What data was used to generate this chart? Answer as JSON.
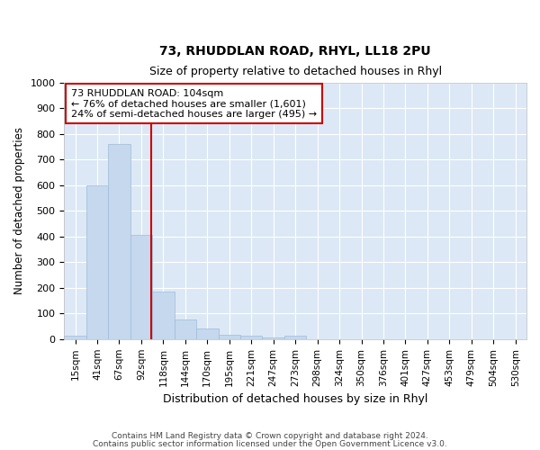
{
  "title": "73, RHUDDLAN ROAD, RHYL, LL18 2PU",
  "subtitle": "Size of property relative to detached houses in Rhyl",
  "xlabel": "Distribution of detached houses by size in Rhyl",
  "ylabel": "Number of detached properties",
  "bar_color": "#c5d8ee",
  "bar_edge_color": "#a0bcd8",
  "background_color": "#dce8f5",
  "grid_color": "#ffffff",
  "bin_labels": [
    "15sqm",
    "41sqm",
    "67sqm",
    "92sqm",
    "118sqm",
    "144sqm",
    "170sqm",
    "195sqm",
    "221sqm",
    "247sqm",
    "273sqm",
    "298sqm",
    "324sqm",
    "350sqm",
    "376sqm",
    "401sqm",
    "427sqm",
    "453sqm",
    "479sqm",
    "504sqm",
    "530sqm"
  ],
  "bar_heights": [
    13,
    600,
    760,
    405,
    185,
    75,
    40,
    18,
    13,
    5,
    13,
    0,
    0,
    0,
    0,
    0,
    0,
    0,
    0,
    0,
    0
  ],
  "ylim": [
    0,
    1000
  ],
  "yticks": [
    0,
    100,
    200,
    300,
    400,
    500,
    600,
    700,
    800,
    900,
    1000
  ],
  "vline_color": "#cc0000",
  "annotation_line1": "73 RHUDDLAN ROAD: 104sqm",
  "annotation_line2": "← 76% of detached houses are smaller (1,601)",
  "annotation_line3": "24% of semi-detached houses are larger (495) →",
  "annotation_box_color": "#cc0000",
  "footer_line1": "Contains HM Land Registry data © Crown copyright and database right 2024.",
  "footer_line2": "Contains public sector information licensed under the Open Government Licence v3.0."
}
